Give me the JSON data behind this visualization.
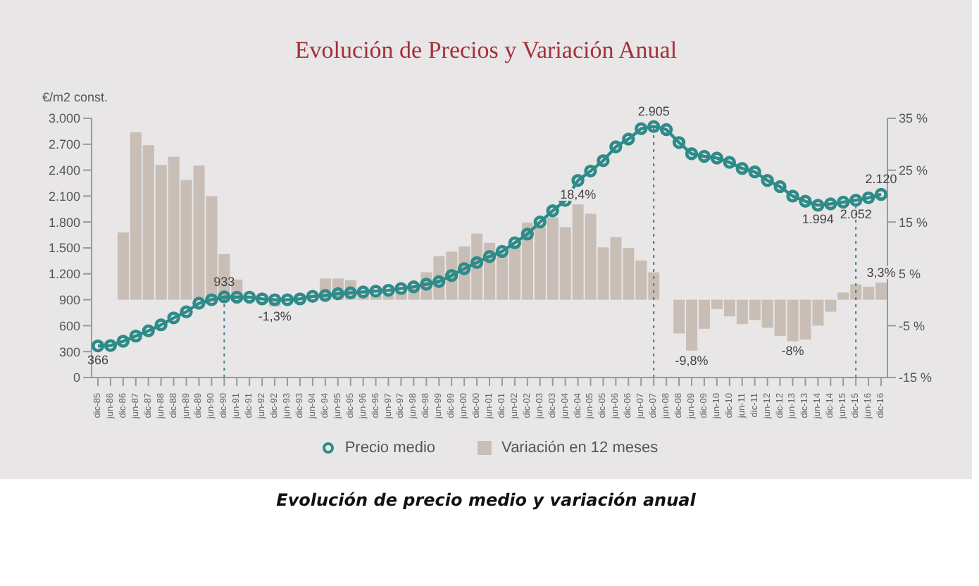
{
  "chart_data": {
    "type": "bar",
    "title": "Evolución de Precios y Variación Anual",
    "ylabel": "€/m2 const.",
    "annotations": [
      "Evolución de precio medio y variación anual"
    ],
    "categories": [
      "dic-85",
      "jun-86",
      "dic-86",
      "jun-87",
      "dic-87",
      "jun-88",
      "dic-88",
      "jun-89",
      "dic-89",
      "jun-90",
      "dic-90",
      "jun-91",
      "dic-91",
      "jun-92",
      "dic-92",
      "jun-93",
      "dic-93",
      "jun-94",
      "dic-94",
      "jun-95",
      "dic-95",
      "jun-96",
      "dic-96",
      "jun-97",
      "dic-97",
      "jun-98",
      "dic-98",
      "jun-99",
      "dic-99",
      "jun-00",
      "dic-00",
      "jun-01",
      "dic-01",
      "jun-02",
      "dic-02",
      "jun-03",
      "dic-03",
      "jun-04",
      "dic-04",
      "jun-05",
      "dic-05",
      "jun-06",
      "dic-06",
      "jun-07",
      "dic-07",
      "jun-08",
      "dic-08",
      "jun-09",
      "dic-09",
      "jun-10",
      "dic-10",
      "jun-11",
      "dic-11",
      "jun-12",
      "dic-12",
      "jun-13",
      "dic-13",
      "jun-14",
      "dic-14",
      "jun-15",
      "dic-15",
      "jun-16",
      "dic-16"
    ],
    "series": [
      {
        "name": "Variación en 12 meses",
        "type": "bar",
        "axis": "y2",
        "color": "#c9beb6",
        "values": [
          null,
          null,
          13.0,
          32.3,
          29.8,
          26.0,
          27.6,
          23.1,
          25.9,
          20.0,
          8.8,
          3.9,
          null,
          null,
          -1.3,
          null,
          null,
          null,
          4.1,
          4.1,
          3.8,
          1.0,
          0.8,
          1.0,
          1.5,
          2.5,
          5.3,
          8.4,
          9.3,
          10.3,
          12.8,
          11.0,
          9.0,
          10.5,
          14.9,
          14.0,
          15.9,
          14.0,
          18.4,
          16.6,
          10.1,
          12.1,
          10.0,
          7.6,
          5.3,
          null,
          -6.5,
          -9.8,
          -5.6,
          -1.8,
          -3.2,
          -4.7,
          -3.9,
          -5.4,
          -7.0,
          -8,
          -7.7,
          -5.0,
          -2.3,
          1.4,
          3.0,
          2.5,
          3.3
        ],
        "value_labels": [
          null,
          null,
          null,
          null,
          null,
          null,
          null,
          null,
          null,
          null,
          null,
          null,
          null,
          null,
          "-1,3%",
          null,
          null,
          null,
          null,
          null,
          null,
          null,
          null,
          null,
          null,
          null,
          null,
          null,
          null,
          null,
          null,
          null,
          null,
          null,
          null,
          null,
          null,
          null,
          "18,4%",
          null,
          null,
          null,
          null,
          null,
          null,
          null,
          null,
          "-9,8%",
          null,
          null,
          null,
          null,
          null,
          null,
          null,
          "-8%",
          null,
          null,
          null,
          null,
          null,
          null,
          "3,3%"
        ]
      },
      {
        "name": "Precio medio",
        "type": "line",
        "color": "#2e8b89",
        "marker": "circle",
        "values": [
          366,
          370,
          420,
          480,
          540,
          610,
          690,
          760,
          860,
          900,
          933,
          930,
          930,
          910,
          900,
          900,
          910,
          940,
          950,
          970,
          980,
          990,
          1000,
          1010,
          1030,
          1050,
          1080,
          1110,
          1180,
          1260,
          1330,
          1400,
          1460,
          1560,
          1660,
          1800,
          1930,
          2050,
          2280,
          2390,
          2510,
          2670,
          2760,
          2880,
          2905,
          2870,
          2720,
          2590,
          2560,
          2540,
          2490,
          2420,
          2380,
          2280,
          2210,
          2100,
          2040,
          1994,
          2010,
          2030,
          2052,
          2080,
          2120
        ],
        "value_labels": [
          "366",
          null,
          null,
          null,
          null,
          null,
          null,
          null,
          null,
          null,
          "933",
          null,
          null,
          null,
          null,
          null,
          null,
          null,
          null,
          null,
          null,
          null,
          null,
          null,
          null,
          null,
          null,
          null,
          null,
          null,
          null,
          null,
          null,
          null,
          null,
          null,
          null,
          null,
          null,
          null,
          null,
          null,
          null,
          null,
          "2.905",
          null,
          null,
          null,
          null,
          null,
          null,
          null,
          null,
          null,
          null,
          null,
          null,
          "1.994",
          null,
          null,
          "2.052",
          null,
          "2.120"
        ]
      }
    ],
    "ylim": [
      0,
      3000
    ],
    "yticks": [
      0,
      {
        "value": 300,
        "label": "300"
      },
      {
        "value": 600,
        "label": "600"
      },
      {
        "value": 900,
        "label": "900"
      },
      {
        "value": 1200,
        "label": "1.200"
      },
      {
        "value": 1500,
        "label": "1.500"
      },
      {
        "value": 1800,
        "label": "1.800"
      },
      {
        "value": 2100,
        "label": "2.100"
      },
      {
        "value": 2400,
        "label": "2.400"
      },
      {
        "value": 2700,
        "label": "2.700"
      },
      {
        "value": 3000,
        "label": "3.000"
      }
    ],
    "y2lim": [
      -15,
      35
    ],
    "y2ticks": [
      {
        "value": -15,
        "label": "-15 %"
      },
      {
        "value": -5,
        "label": "-5 %"
      },
      {
        "value": 5,
        "label": "5 %"
      },
      {
        "value": 15,
        "label": "15 %"
      },
      {
        "value": 25,
        "label": "25 %"
      },
      {
        "value": 35,
        "label": "35 %"
      }
    ],
    "ref_lines": [
      {
        "axis": "x",
        "value": "dic-90",
        "line_style": "dotted",
        "color": "#3a7f8f"
      },
      {
        "axis": "x",
        "value": "dic-07",
        "line_style": "dotted",
        "color": "#3a7f8f"
      },
      {
        "axis": "x",
        "value": "dic-15",
        "line_style": "dotted",
        "color": "#3a7f8f"
      }
    ],
    "grid": false,
    "legend": "bottom"
  }
}
